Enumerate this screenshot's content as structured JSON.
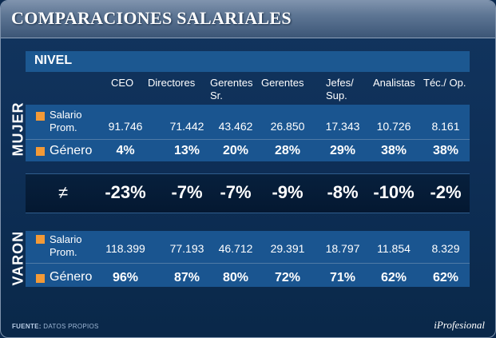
{
  "header": {
    "title": "COMPARACIONES SALARIALES"
  },
  "chart_data": {
    "type": "table",
    "title": "COMPARACIONES SALARIALES",
    "group_header": "NIVEL",
    "columns": [
      [
        "CEO"
      ],
      [
        "Directores"
      ],
      [
        "Gerentes",
        "Sr."
      ],
      [
        "Gerentes"
      ],
      [
        "Jefes/",
        "Sup."
      ],
      [
        "Analistas"
      ],
      [
        "Téc./ Op."
      ]
    ],
    "groups": [
      {
        "name": "MUJER",
        "rows": [
          {
            "label_lines": [
              "Salario",
              "Prom."
            ],
            "values": [
              "91.746",
              "71.442",
              "43.462",
              "26.850",
              "17.343",
              "10.726",
              "8.161"
            ]
          },
          {
            "label_lines": [
              "Género"
            ],
            "values": [
              "4%",
              "13%",
              "20%",
              "28%",
              "29%",
              "38%",
              "38%"
            ]
          }
        ]
      },
      {
        "name": "VARON",
        "rows": [
          {
            "label_lines": [
              "Salario",
              "Prom."
            ],
            "values": [
              "118.399",
              "77.193",
              "46.712",
              "29.391",
              "18.797",
              "11.854",
              "8.329"
            ]
          },
          {
            "label_lines": [
              "Género"
            ],
            "values": [
              "96%",
              "87%",
              "80%",
              "72%",
              "71%",
              "62%",
              "62%"
            ]
          }
        ]
      }
    ],
    "difference_row": {
      "symbol": "≠",
      "values": [
        "-23%",
        "-7%",
        "-7%",
        "-9%",
        "-8%",
        "-10%",
        "-2%"
      ]
    }
  },
  "footer": {
    "source_label": "FUENTE:",
    "source_text": "DATOS PROPIOS",
    "brand": "iProfesional"
  },
  "colors": {
    "bullet": "#f39a37",
    "row_band": "#1a5590",
    "diff_band": "#041831"
  }
}
